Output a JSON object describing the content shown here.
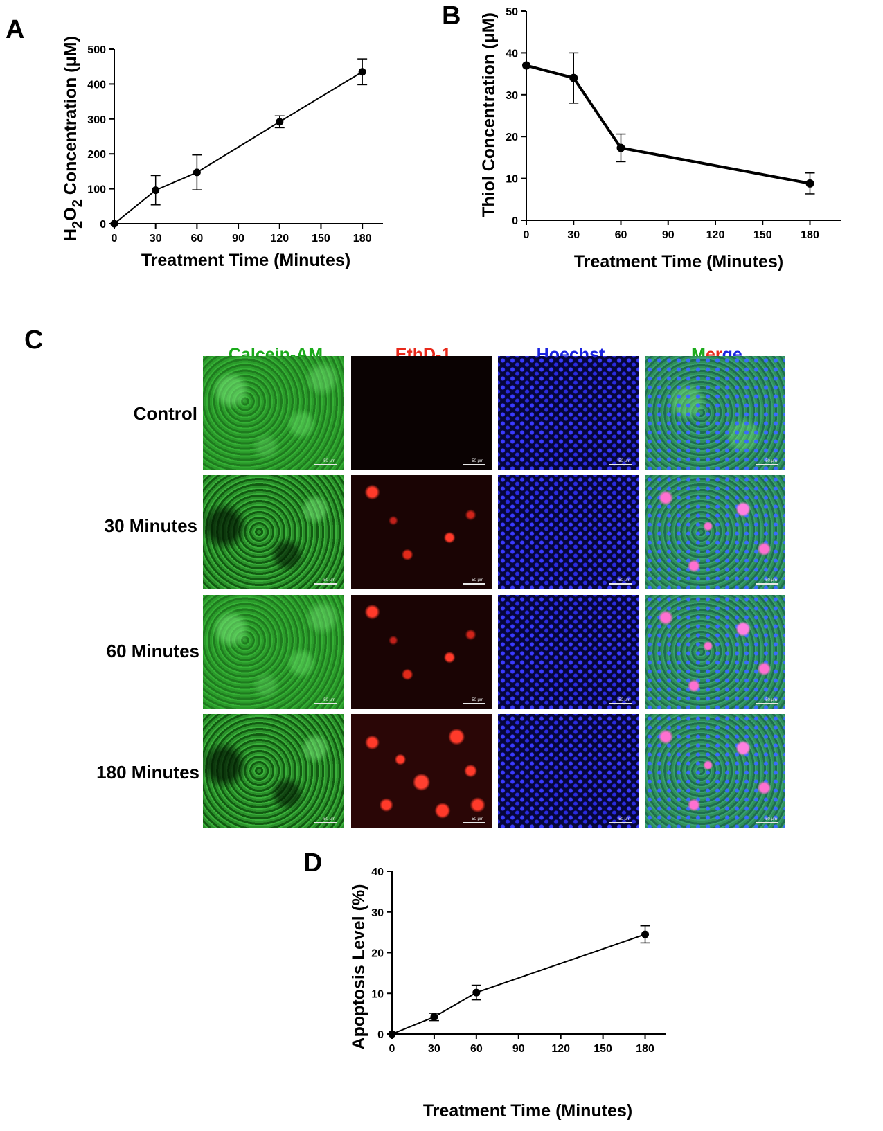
{
  "panels": {
    "A": "A",
    "B": "B",
    "C": "C",
    "D": "D"
  },
  "chart_data": [
    {
      "id": "A",
      "type": "line",
      "ylabel_main": "H",
      "ylabel_sub1": "2",
      "ylabel_mid": "O",
      "ylabel_sub2": "2",
      "ylabel_rest": " Concentration (μM)",
      "xlabel": "Treatment Time (Minutes)",
      "x": [
        0,
        30,
        60,
        120,
        180
      ],
      "y": [
        0,
        96,
        147,
        292,
        435
      ],
      "err": [
        0,
        42,
        50,
        17,
        37
      ],
      "xlim": [
        0,
        195
      ],
      "ylim": [
        0,
        500
      ],
      "xticks": [
        0,
        30,
        60,
        90,
        120,
        150,
        180
      ],
      "yticks": [
        0,
        100,
        200,
        300,
        400,
        500
      ]
    },
    {
      "id": "B",
      "type": "line",
      "ylabel": "Thiol Concentration (μM)",
      "xlabel": "Treatment Time (Minutes)",
      "x": [
        0,
        30,
        60,
        180
      ],
      "y": [
        37,
        34,
        17.3,
        8.8
      ],
      "err": [
        0,
        6,
        3.3,
        2.5
      ],
      "xlim": [
        0,
        200
      ],
      "ylim": [
        0,
        50
      ],
      "xticks": [
        0,
        30,
        60,
        90,
        120,
        150,
        180
      ],
      "yticks": [
        0,
        10,
        20,
        30,
        40,
        50
      ]
    },
    {
      "id": "D",
      "type": "line",
      "ylabel": "Apoptosis Level (%)",
      "xlabel": "Treatment Time (Minutes)",
      "x": [
        0,
        30,
        60,
        180
      ],
      "y": [
        0,
        4.2,
        10.2,
        24.5
      ],
      "err": [
        0,
        0.9,
        1.8,
        2.1
      ],
      "xlim": [
        0,
        195
      ],
      "ylim": [
        0,
        40
      ],
      "xticks": [
        0,
        30,
        60,
        90,
        120,
        150,
        180
      ],
      "yticks": [
        0,
        10,
        20,
        30,
        40
      ]
    }
  ],
  "micrographs": {
    "columns": [
      {
        "label": "Calcein-AM",
        "color": "#1aaa1a"
      },
      {
        "label": "EthD-1",
        "color": "#e8281a"
      },
      {
        "label": "Hoechst",
        "color": "#1a22e0"
      }
    ],
    "merge": {
      "m": "M",
      "er": "er",
      "ge": "ge",
      "colors": [
        "#1aaa1a",
        "#e8281a",
        "#1a22e0"
      ]
    },
    "rows": [
      "Control",
      "30 Minutes",
      "60 Minutes",
      "180 Minutes"
    ],
    "scale_label": "50 μm"
  }
}
